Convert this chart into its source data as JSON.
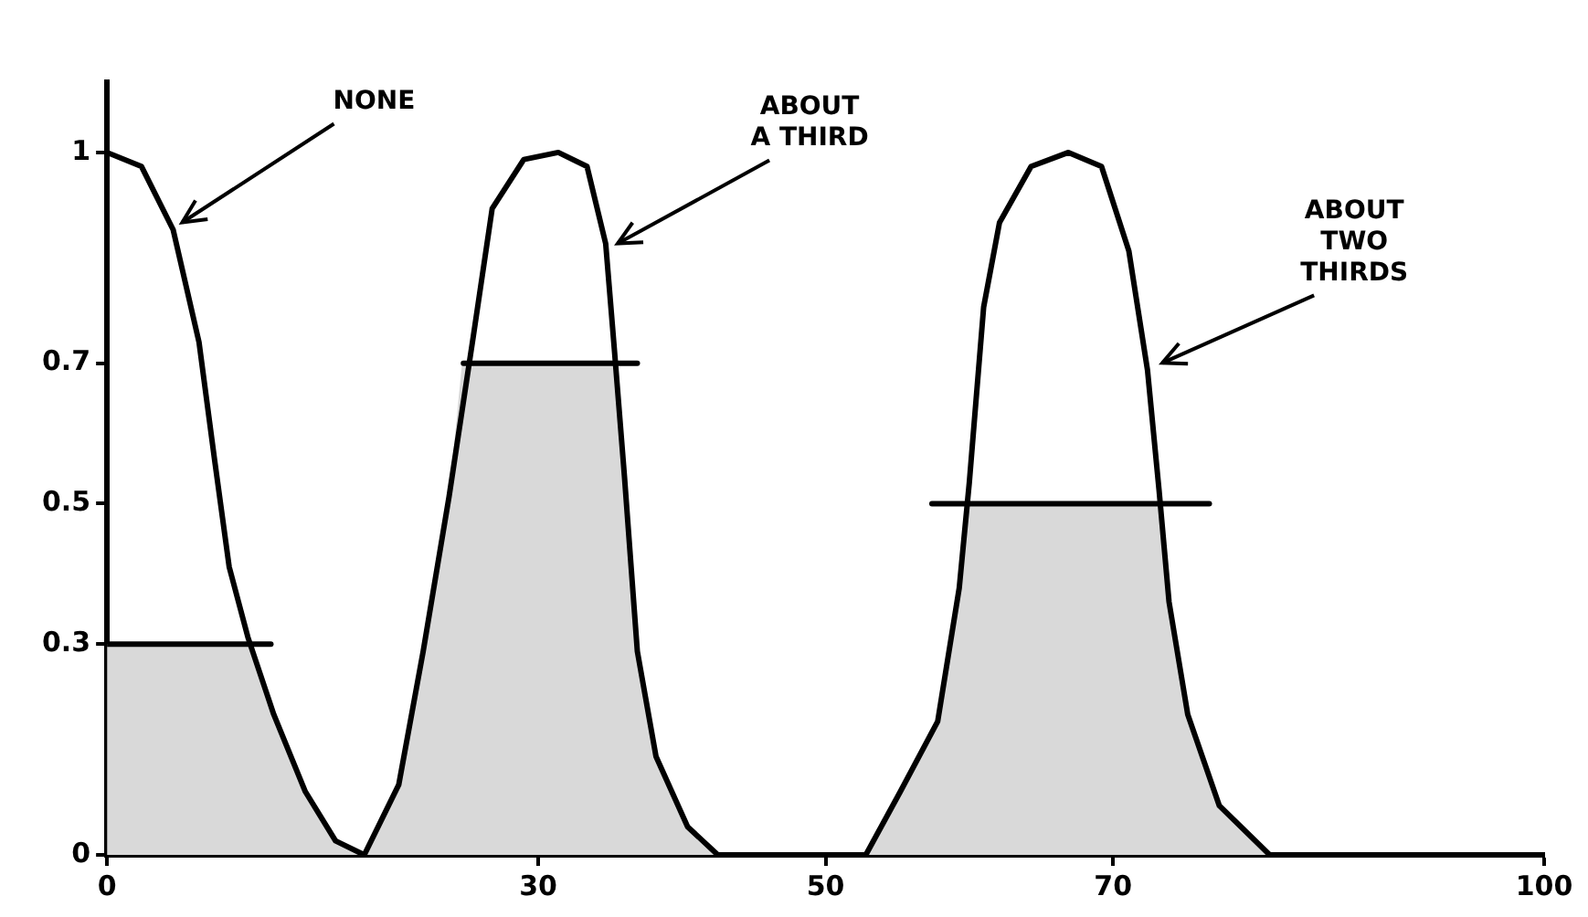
{
  "chart_data": {
    "type": "line",
    "xlim": [
      0,
      100
    ],
    "xticks": [
      0,
      30,
      50,
      70,
      100
    ],
    "ylim": [
      0,
      1.1
    ],
    "yticks": [
      0,
      0.3,
      0.5,
      0.7,
      1
    ],
    "grid": false,
    "series": [
      {
        "type": "area",
        "color": "#d9d9d9",
        "x": [
          0,
          9.8,
          11.6,
          13.8,
          15.9,
          17.9
        ],
        "values": [
          0.3,
          0.3,
          0.2,
          0.09,
          0.02,
          0
        ]
      },
      {
        "type": "area",
        "color": "#d9d9d9",
        "x": [
          17.9,
          20.3,
          22.0,
          23.8,
          24.7,
          35.4,
          36.0,
          36.9,
          38.2,
          40.4,
          42.5
        ],
        "values": [
          0,
          0.1,
          0.29,
          0.51,
          0.7,
          0.7,
          0.54,
          0.29,
          0.14,
          0.04,
          0
        ]
      },
      {
        "type": "area",
        "color": "#d9d9d9",
        "x": [
          52.8,
          55.2,
          57.8,
          59.3,
          59.8,
          73.2,
          73.9,
          75.2,
          77.4,
          80.9
        ],
        "values": [
          0,
          0.09,
          0.19,
          0.38,
          0.5,
          0.5,
          0.36,
          0.2,
          0.07,
          0
        ]
      },
      {
        "type": "line",
        "color": "#000000",
        "x": [
          0,
          2.4,
          4.6,
          6.4,
          7.5,
          8.5,
          9.8,
          11.6,
          13.8,
          15.9,
          17.9,
          20.3,
          22.0,
          23.8,
          25.5,
          26.8,
          29.0,
          31.4,
          33.4,
          34.7,
          35.3,
          36.0,
          36.9,
          38.2,
          40.4,
          42.5,
          52.8,
          55.2,
          57.8,
          59.3,
          60.0,
          61.0,
          62.1,
          64.3,
          66.9,
          69.2,
          71.1,
          72.4,
          73.2,
          73.9,
          75.2,
          77.4,
          80.9
        ],
        "values": [
          1.0,
          0.98,
          0.89,
          0.73,
          0.56,
          0.41,
          0.31,
          0.2,
          0.09,
          0.02,
          0,
          0.1,
          0.29,
          0.51,
          0.74,
          0.92,
          0.99,
          1.0,
          0.98,
          0.87,
          0.72,
          0.54,
          0.29,
          0.14,
          0.04,
          0,
          0,
          0.09,
          0.19,
          0.38,
          0.53,
          0.78,
          0.9,
          0.98,
          1.0,
          0.98,
          0.86,
          0.69,
          0.52,
          0.36,
          0.2,
          0.07,
          0
        ]
      },
      {
        "type": "line",
        "color": "#000000",
        "x": [
          0,
          11.4
        ],
        "values": [
          0.3,
          0.3
        ]
      },
      {
        "type": "line",
        "color": "#000000",
        "x": [
          24.8,
          36.9
        ],
        "values": [
          0.7,
          0.7
        ]
      },
      {
        "type": "line",
        "color": "#000000",
        "x": [
          57.4,
          76.7
        ],
        "values": [
          0.5,
          0.5
        ]
      }
    ],
    "annotations": [
      {
        "text": "NONE",
        "x": 4.6,
        "y": 0.89
      },
      {
        "text": "ABOUT A THIRD",
        "x": 34.9,
        "y": 0.86
      },
      {
        "text": "ABOUT TWO THIRDS",
        "x": 72.8,
        "y": 0.69
      }
    ]
  }
}
